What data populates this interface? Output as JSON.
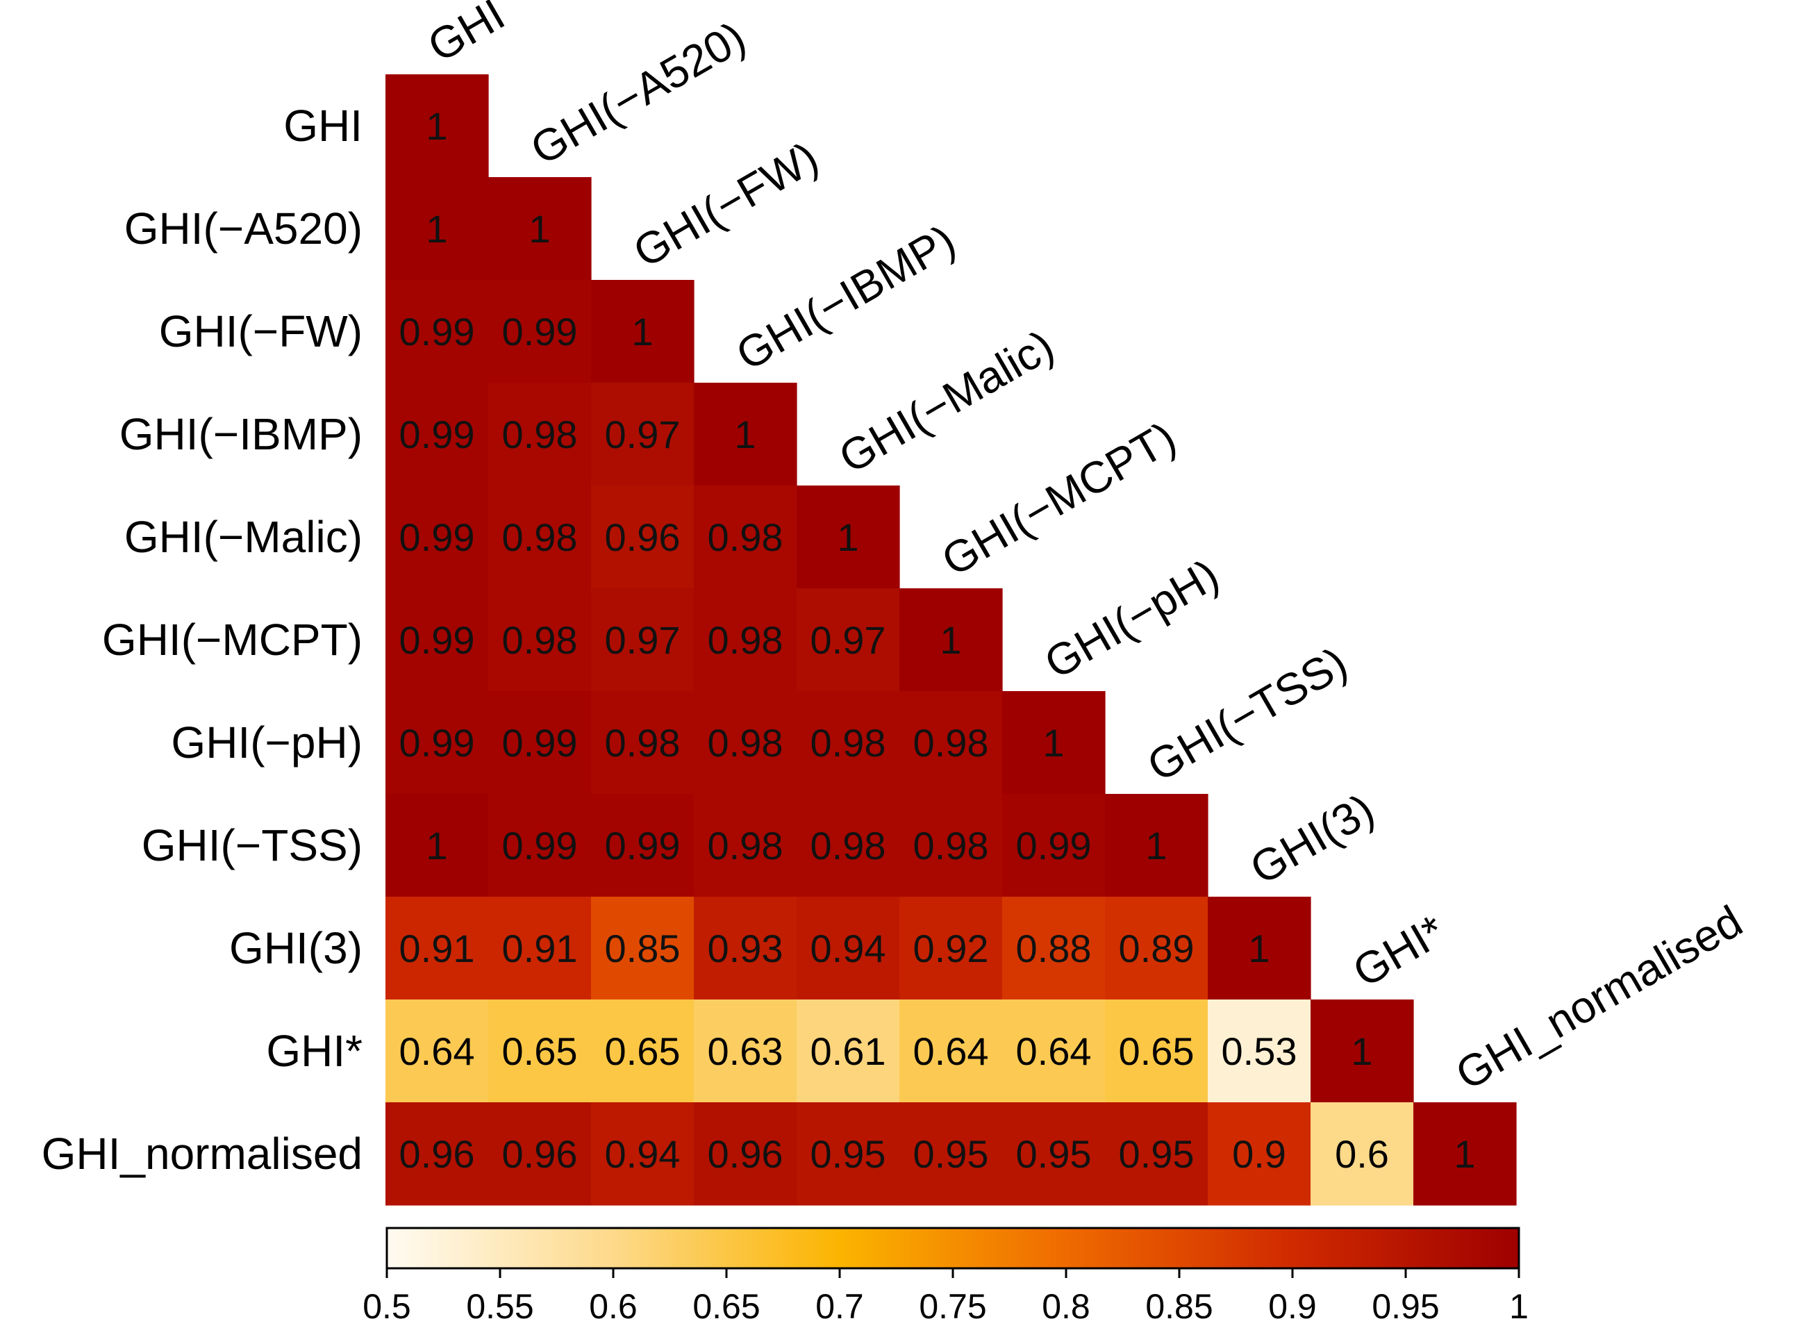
{
  "chart_data": {
    "type": "heatmap",
    "layout": "lower-triangle",
    "title": "",
    "xlabel": "",
    "ylabel": "",
    "labels": [
      "GHI",
      "GHI(−A520)",
      "GHI(−FW)",
      "GHI(−IBMP)",
      "GHI(−Malic)",
      "GHI(−MCPT)",
      "GHI(−pH)",
      "GHI(−TSS)",
      "GHI(3)",
      "GHI*",
      "GHI_normalised"
    ],
    "matrix": [
      [
        1
      ],
      [
        1,
        1
      ],
      [
        0.99,
        0.99,
        1
      ],
      [
        0.99,
        0.98,
        0.97,
        1
      ],
      [
        0.99,
        0.98,
        0.96,
        0.98,
        1
      ],
      [
        0.99,
        0.98,
        0.97,
        0.98,
        0.97,
        1
      ],
      [
        0.99,
        0.99,
        0.98,
        0.98,
        0.98,
        0.98,
        1
      ],
      [
        1,
        0.99,
        0.99,
        0.98,
        0.98,
        0.98,
        0.99,
        1
      ],
      [
        0.91,
        0.91,
        0.85,
        0.93,
        0.94,
        0.92,
        0.88,
        0.89,
        1
      ],
      [
        0.64,
        0.65,
        0.65,
        0.63,
        0.61,
        0.64,
        0.64,
        0.65,
        0.53,
        1
      ],
      [
        0.96,
        0.96,
        0.94,
        0.96,
        0.95,
        0.95,
        0.95,
        0.95,
        0.9,
        0.6,
        1
      ]
    ],
    "colorbar": {
      "range": [
        0.5,
        1
      ],
      "ticks": [
        "0.5",
        "0.55",
        "0.6",
        "0.65",
        "0.7",
        "0.75",
        "0.8",
        "0.85",
        "0.9",
        "0.95",
        "1"
      ],
      "colors": [
        "#fffbf2",
        "#fdd98a",
        "#fbb400",
        "#ef6a00",
        "#d02a00",
        "#9e0000"
      ]
    }
  }
}
